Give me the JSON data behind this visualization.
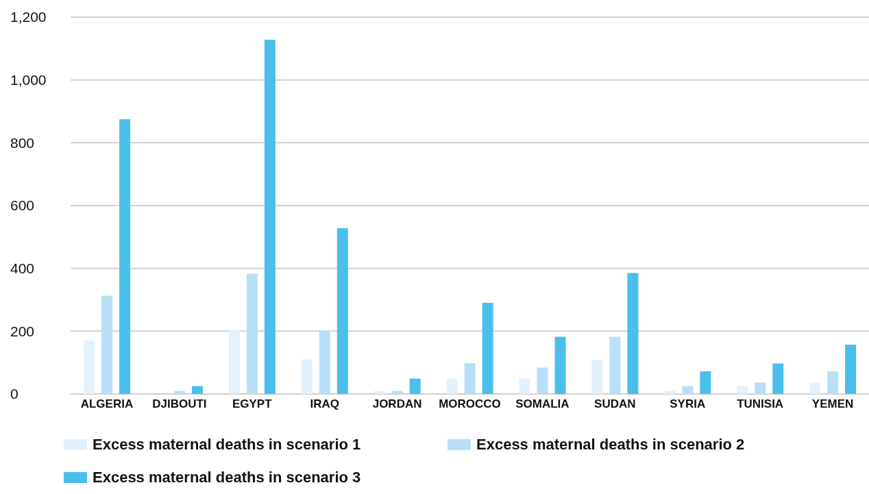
{
  "chart_data": {
    "type": "bar",
    "categories": [
      "ALGERIA",
      "DJIBOUTI",
      "EGYPT",
      "IRAQ",
      "JORDAN",
      "MOROCCO",
      "SOMALIA",
      "SUDAN",
      "SYRIA",
      "TUNISIA",
      "YEMEN"
    ],
    "series": [
      {
        "name": "Excess maternal deaths in scenario 1",
        "color": "#e3f1fc",
        "values": [
          170,
          null,
          203,
          110,
          10,
          49,
          49,
          109,
          10,
          25,
          36
        ]
      },
      {
        "name": "Excess maternal deaths in scenario 2",
        "color": "#b8dff5",
        "values": [
          313,
          10,
          383,
          203,
          10,
          98,
          84,
          182,
          25,
          36,
          72
        ]
      },
      {
        "name": "Excess maternal deaths in scenario 3",
        "color": "#4bbfeb",
        "values": [
          875,
          25,
          1128,
          528,
          49,
          290,
          182,
          385,
          72,
          97,
          157
        ]
      }
    ],
    "ylim": [
      0,
      1200
    ],
    "yticks": [
      {
        "value": 0,
        "label": "0"
      },
      {
        "value": 200,
        "label": "200"
      },
      {
        "value": 400,
        "label": "400"
      },
      {
        "value": 600,
        "label": "600"
      },
      {
        "value": 800,
        "label": "800"
      },
      {
        "value": 1000,
        "label": "1,000"
      },
      {
        "value": 1200,
        "label": "1,200"
      }
    ],
    "grid": "y",
    "legend": "bottom"
  }
}
